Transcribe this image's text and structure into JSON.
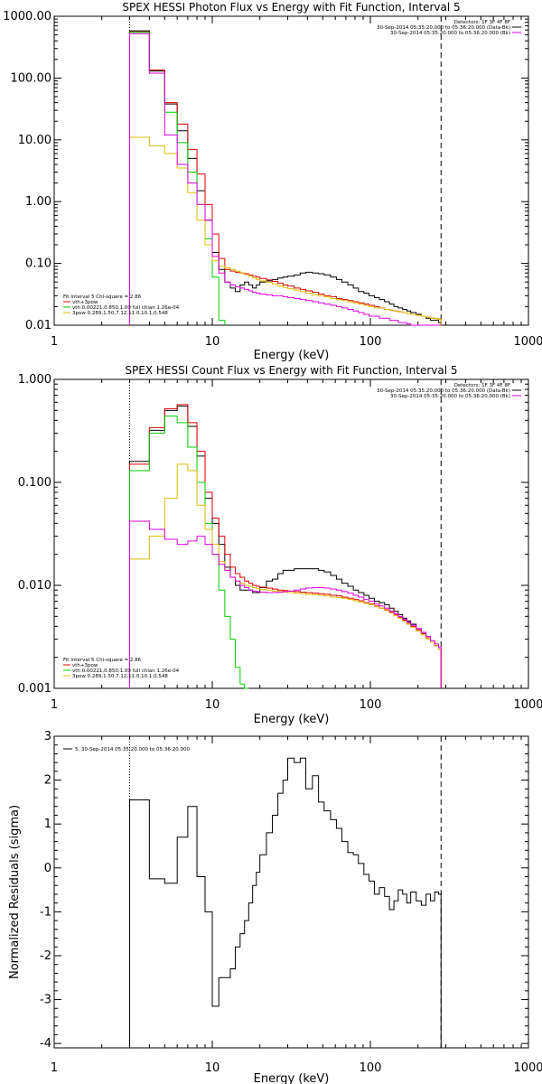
{
  "chart_data": [
    {
      "type": "line",
      "title": "SPEX HESSI Photon Flux vs Energy with Fit Function, Interval 5",
      "xlabel": "Energy (keV)",
      "ylabel": "",
      "xscale": "log",
      "yscale": "log",
      "xlim": [
        1,
        1000
      ],
      "ylim": [
        0.01,
        1000
      ],
      "grid": false,
      "x_tick_labels": [
        "1",
        "10",
        "100",
        "1000"
      ],
      "y_tick_labels": [
        "0.01",
        "0.10",
        "1.00",
        "10.00",
        "100.00",
        "1000.00"
      ],
      "y_tick_values": [
        0.01,
        0.1,
        1,
        10,
        100,
        1000
      ],
      "legend_right": [
        "Detectors: 1F 3F 4F 8F",
        "30-Sep-2014 05:35:20.000 to 05:36:20.000 (Data-Bk)",
        "30-Sep-2014 05:35:20.000 to 05:36:20.000 (Bk)"
      ],
      "legend_left": [
        "Fit Interval 5   Chi-square = 2.86",
        "vth+3pow",
        "vth 0.00221,0.850,1.00  full chian 1.26e-04",
        "3pow 0.289,1.50,7.12,11.0,10.1,0.548"
      ],
      "x_edges": [
        3,
        4,
        5,
        6,
        7,
        8,
        9,
        10,
        11,
        12,
        13,
        14,
        15,
        16,
        17,
        18,
        19,
        20,
        22,
        24,
        26,
        28,
        30,
        33,
        36,
        39,
        43,
        47,
        51,
        56,
        61,
        66,
        72,
        78,
        84,
        91,
        98,
        106,
        114,
        123,
        132,
        141,
        150,
        160,
        170,
        180,
        195,
        210,
        225,
        240,
        255,
        270,
        280
      ],
      "series": [
        {
          "name": "Data-Bk",
          "color": "#000000",
          "values": [
            580,
            130,
            38,
            14,
            5,
            1.5,
            0.5,
            0.15,
            0.08,
            0.05,
            0.04,
            0.035,
            0.045,
            0.05,
            0.045,
            0.04,
            0.045,
            0.05,
            0.052,
            0.055,
            0.058,
            0.06,
            0.062,
            0.065,
            0.07,
            0.072,
            0.07,
            0.068,
            0.065,
            0.06,
            0.055,
            0.05,
            0.045,
            0.04,
            0.035,
            0.033,
            0.03,
            0.028,
            0.026,
            0.024,
            0.022,
            0.02,
            0.019,
            0.018,
            0.017,
            0.016,
            0.015,
            0.014,
            0.013,
            0.012,
            0.012,
            0.011
          ]
        },
        {
          "name": "vth+3pow",
          "color": "#dd0000",
          "values": [
            560,
            135,
            40,
            18,
            7,
            2.8,
            0.9,
            0.3,
            0.12,
            0.08,
            0.075,
            0.072,
            0.07,
            0.068,
            0.065,
            0.062,
            0.06,
            0.057,
            0.054,
            0.051,
            0.048,
            0.045,
            0.043,
            0.04,
            0.038,
            0.036,
            0.034,
            0.032,
            0.03,
            0.029,
            0.027,
            0.026,
            0.025,
            0.024,
            0.023,
            0.022,
            0.021,
            0.02,
            0.019,
            0.018,
            0.0175,
            0.017,
            0.0165,
            0.016,
            0.0155,
            0.015,
            0.0145,
            0.014,
            0.0135,
            0.013,
            0.0128,
            0.0125
          ]
        },
        {
          "name": "vth",
          "color": "#00cc00",
          "values": [
            550,
            120,
            28,
            9,
            3,
            0.9,
            0.25,
            0.06,
            0.012
          ]
        },
        {
          "name": "3pow",
          "color": "#ddbb00",
          "values": [
            11,
            8,
            6,
            3.5,
            1.4,
            0.5,
            0.2,
            0.11,
            0.09,
            0.085,
            0.08,
            0.075,
            0.07,
            0.066,
            0.062,
            0.058,
            0.055,
            0.052,
            0.049,
            0.046,
            0.043,
            0.041,
            0.039,
            0.037,
            0.035,
            0.033,
            0.031,
            0.03,
            0.029,
            0.027,
            0.026,
            0.025,
            0.024,
            0.023,
            0.022,
            0.021,
            0.02,
            0.019,
            0.019,
            0.018,
            0.0175,
            0.017,
            0.0165,
            0.016,
            0.0155,
            0.015,
            0.0145,
            0.014,
            0.0135,
            0.013,
            0.0128,
            0.0125
          ]
        },
        {
          "name": "Bk",
          "color": "#dd00dd",
          "values": [
            520,
            120,
            12,
            4,
            2,
            0.9,
            0.5,
            0.13,
            0.07,
            0.05,
            0.045,
            0.042,
            0.04,
            0.038,
            0.036,
            0.034,
            0.033,
            0.032,
            0.031,
            0.03,
            0.03,
            0.029,
            0.028,
            0.027,
            0.026,
            0.025,
            0.024,
            0.023,
            0.022,
            0.021,
            0.02,
            0.019,
            0.018,
            0.017,
            0.016,
            0.015,
            0.014,
            0.014,
            0.013,
            0.013,
            0.012,
            0.012,
            0.011,
            0.011,
            0.0105,
            0.01,
            0.01,
            0.01,
            0.01,
            0.01,
            0.01,
            0.01
          ]
        }
      ]
    },
    {
      "type": "line",
      "title": "SPEX HESSI Count Flux vs Energy with Fit Function, Interval 5",
      "xlabel": "Energy (keV)",
      "ylabel": "",
      "xscale": "log",
      "yscale": "log",
      "xlim": [
        1,
        1000
      ],
      "ylim": [
        0.001,
        1
      ],
      "grid": false,
      "x_tick_labels": [
        "1",
        "10",
        "100",
        "1000"
      ],
      "y_tick_labels": [
        "0.001",
        "0.010",
        "0.100",
        "1.000"
      ],
      "y_tick_values": [
        0.001,
        0.01,
        0.1,
        1
      ],
      "legend_right": [
        "Detectors: 1F 3F 4F 8F",
        "30-Sep-2014 05:35:20.000 to 05:36:20.000 (Data-Bk)",
        "30-Sep-2014 05:35:20.000 to 05:36:20.000 (Bk)"
      ],
      "legend_left": [
        "Fit Interval 5   Chi-square = 2.86",
        "vth+3pow",
        "vth 0.00221,0.850,1.00  full chian 1.26e-04",
        "3pow 0.289,1.50,7.12,11.0,10.1,0.548"
      ],
      "x_edges": [
        3,
        4,
        5,
        6,
        7,
        8,
        9,
        10,
        11,
        12,
        13,
        14,
        15,
        16,
        17,
        18,
        19,
        20,
        22,
        24,
        26,
        28,
        30,
        33,
        36,
        39,
        43,
        47,
        51,
        56,
        61,
        66,
        72,
        78,
        84,
        91,
        98,
        106,
        114,
        123,
        132,
        141,
        150,
        160,
        170,
        180,
        195,
        210,
        225,
        240,
        255,
        270,
        280
      ],
      "series": [
        {
          "name": "Data-Bk",
          "color": "#000000",
          "values": [
            0.16,
            0.32,
            0.5,
            0.55,
            0.35,
            0.18,
            0.07,
            0.04,
            0.025,
            0.015,
            0.012,
            0.01,
            0.009,
            0.009,
            0.009,
            0.0085,
            0.0085,
            0.0095,
            0.011,
            0.0115,
            0.013,
            0.014,
            0.014,
            0.0145,
            0.0145,
            0.0145,
            0.0145,
            0.014,
            0.0135,
            0.0125,
            0.0115,
            0.0105,
            0.0098,
            0.009,
            0.0085,
            0.008,
            0.0075,
            0.007,
            0.0068,
            0.0065,
            0.006,
            0.0056,
            0.0052,
            0.0048,
            0.0045,
            0.0042,
            0.0038,
            0.0034,
            0.0031,
            0.0028,
            0.0026,
            0.0024
          ]
        },
        {
          "name": "vth+3pow",
          "color": "#dd0000",
          "values": [
            0.15,
            0.34,
            0.52,
            0.57,
            0.38,
            0.2,
            0.08,
            0.045,
            0.03,
            0.02,
            0.015,
            0.013,
            0.012,
            0.011,
            0.0105,
            0.01,
            0.0098,
            0.0096,
            0.0094,
            0.0092,
            0.009,
            0.0089,
            0.0088,
            0.0087,
            0.0086,
            0.0085,
            0.0084,
            0.0083,
            0.0082,
            0.008,
            0.0079,
            0.0077,
            0.0075,
            0.0073,
            0.0071,
            0.0068,
            0.0066,
            0.0063,
            0.006,
            0.0058,
            0.0055,
            0.0052,
            0.0049,
            0.0046,
            0.0043,
            0.004,
            0.0037,
            0.0034,
            0.0031,
            0.0028,
            0.0026,
            0.0024
          ]
        },
        {
          "name": "vth",
          "color": "#00cc00",
          "values": [
            0.13,
            0.3,
            0.44,
            0.38,
            0.22,
            0.1,
            0.04,
            0.02,
            0.009,
            0.005,
            0.003,
            0.0016,
            0.0011,
            0.0007
          ]
        },
        {
          "name": "3pow",
          "color": "#ddbb00",
          "values": [
            0.018,
            0.03,
            0.07,
            0.15,
            0.13,
            0.06,
            0.035,
            0.025,
            0.017,
            0.014,
            0.012,
            0.011,
            0.0105,
            0.01,
            0.0098,
            0.0095,
            0.0093,
            0.0091,
            0.009,
            0.0088,
            0.0087,
            0.0086,
            0.0085,
            0.0084,
            0.0083,
            0.0082,
            0.0081,
            0.008,
            0.0079,
            0.0077,
            0.0076,
            0.0075,
            0.0073,
            0.0071,
            0.0069,
            0.0067,
            0.0065,
            0.0062,
            0.006,
            0.0057,
            0.0054,
            0.0051,
            0.0048,
            0.0045,
            0.0042,
            0.0039,
            0.0036,
            0.0033,
            0.003,
            0.0028,
            0.0026,
            0.0024
          ]
        },
        {
          "name": "Bk",
          "color": "#dd00dd",
          "values": [
            0.042,
            0.035,
            0.028,
            0.025,
            0.027,
            0.03,
            0.025,
            0.02,
            0.016,
            0.014,
            0.012,
            0.011,
            0.01,
            0.0095,
            0.009,
            0.0088,
            0.0087,
            0.0086,
            0.0085,
            0.0085,
            0.0086,
            0.0087,
            0.0088,
            0.009,
            0.0092,
            0.0094,
            0.0095,
            0.0095,
            0.0094,
            0.0092,
            0.009,
            0.0087,
            0.0084,
            0.008,
            0.0077,
            0.0073,
            0.007,
            0.0066,
            0.0063,
            0.006,
            0.0056,
            0.0053,
            0.005,
            0.0047,
            0.0044,
            0.0041,
            0.0038,
            0.0035,
            0.0032,
            0.0029,
            0.0027,
            0.0025
          ]
        }
      ]
    },
    {
      "type": "line",
      "title": "",
      "xlabel": "Energy (keV)",
      "ylabel": "Normalized Residuals (sigma)",
      "xscale": "log",
      "yscale": "linear",
      "xlim": [
        1,
        1000
      ],
      "ylim": [
        -4.1,
        3
      ],
      "grid": false,
      "x_tick_labels": [
        "1",
        "10",
        "100",
        "1000"
      ],
      "y_tick_labels": [
        "3",
        "2",
        "1",
        "0",
        "-1",
        "-2",
        "-3",
        "-4"
      ],
      "y_tick_values": [
        3,
        2,
        1,
        0,
        -1,
        -2,
        -3,
        -4
      ],
      "legend_left": [
        "5, 30-Sep-2014 05:35:20.000 to 05:36:20.000"
      ],
      "x_edges": [
        3,
        4,
        5,
        6,
        7,
        8,
        9,
        10,
        11,
        12,
        13,
        14,
        15,
        16,
        17,
        18,
        19,
        20,
        22,
        24,
        26,
        28,
        30,
        33,
        36,
        39,
        43,
        47,
        51,
        56,
        61,
        66,
        72,
        78,
        84,
        91,
        98,
        106,
        114,
        123,
        132,
        141,
        150,
        160,
        170,
        180,
        195,
        210,
        225,
        240,
        255,
        270,
        280
      ],
      "series": [
        {
          "name": "Residuals",
          "color": "#000000",
          "values": [
            1.55,
            -0.25,
            -0.35,
            0.7,
            1.4,
            -0.2,
            -1.0,
            -3.15,
            -2.5,
            -2.5,
            -2.3,
            -1.8,
            -1.5,
            -1.2,
            -0.8,
            -0.4,
            -0.1,
            0.3,
            0.8,
            1.2,
            1.7,
            2.0,
            2.5,
            2.4,
            2.5,
            1.8,
            2.1,
            1.5,
            1.3,
            1.1,
            0.9,
            0.6,
            0.35,
            0.3,
            0.1,
            -0.15,
            -0.3,
            -0.6,
            -0.45,
            -0.65,
            -0.95,
            -0.75,
            -0.5,
            -0.6,
            -0.8,
            -0.55,
            -0.75,
            -0.85,
            -0.6,
            -0.75,
            -0.55,
            -0.6
          ]
        }
      ]
    }
  ]
}
